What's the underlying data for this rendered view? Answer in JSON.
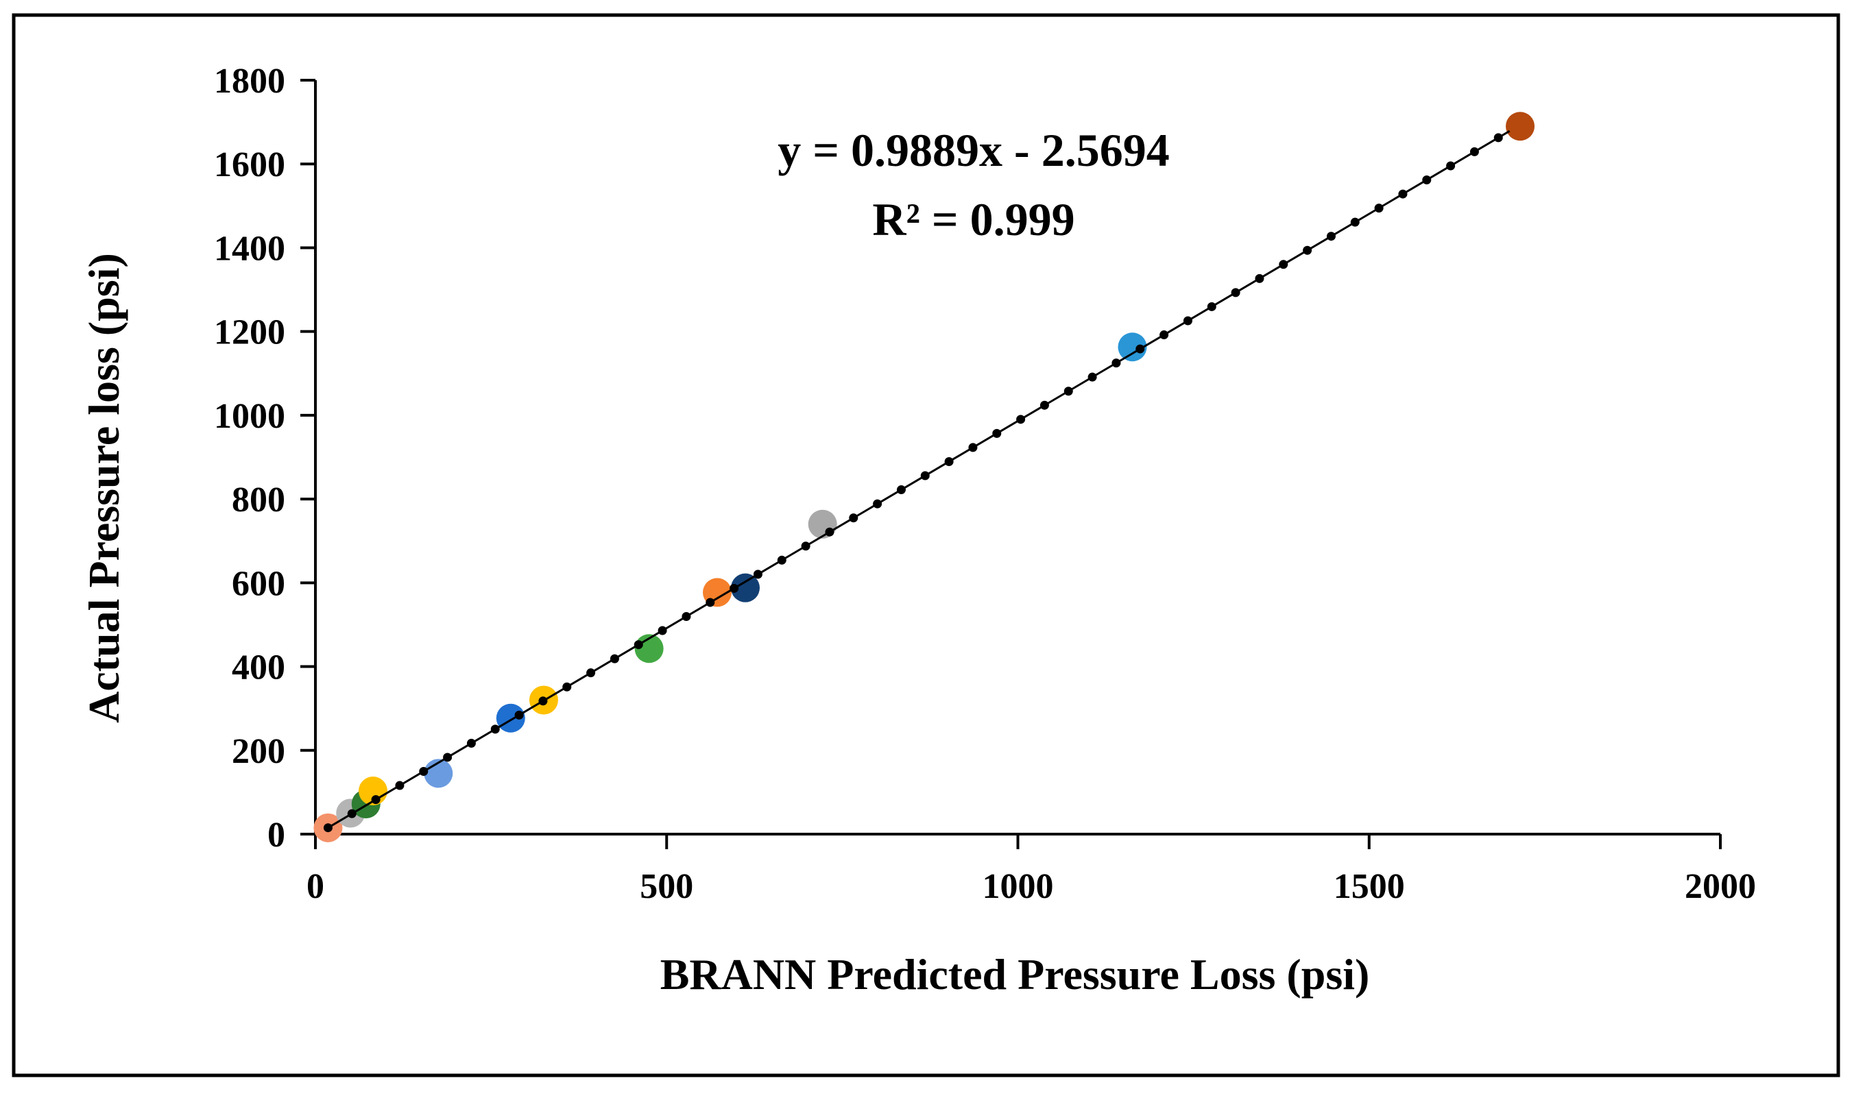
{
  "chart_data": {
    "type": "scatter",
    "title": "",
    "xlabel": "BRANN Predicted Pressure Loss (psi)",
    "ylabel": "Actual Pressure loss (psi)",
    "xlim": [
      0,
      2000
    ],
    "ylim": [
      0,
      1800
    ],
    "xticks": [
      0,
      500,
      1000,
      1500,
      2000
    ],
    "yticks": [
      0,
      200,
      400,
      600,
      800,
      1000,
      1200,
      1400,
      1600,
      1800
    ],
    "xtick_labels": [
      "0",
      "500",
      "1000",
      "1500",
      "2000"
    ],
    "ytick_labels": [
      "0",
      "200",
      "400",
      "600",
      "800",
      "1000",
      "1200",
      "1400",
      "1600",
      "1800"
    ],
    "grid": false,
    "legend": "none",
    "points": [
      {
        "x": 18,
        "y": 15,
        "color": "#f4926a"
      },
      {
        "x": 50,
        "y": 50,
        "color": "#b4b4b4"
      },
      {
        "x": 72,
        "y": 72,
        "color": "#2e7d32"
      },
      {
        "x": 82,
        "y": 103,
        "color": "#ffc000"
      },
      {
        "x": 175,
        "y": 145,
        "color": "#6a9be0"
      },
      {
        "x": 278,
        "y": 277,
        "color": "#1f6fd1"
      },
      {
        "x": 325,
        "y": 320,
        "color": "#ffc000"
      },
      {
        "x": 475,
        "y": 443,
        "color": "#43a843"
      },
      {
        "x": 572,
        "y": 577,
        "color": "#f57f2a"
      },
      {
        "x": 612,
        "y": 588,
        "color": "#123f73"
      },
      {
        "x": 722,
        "y": 740,
        "color": "#a8a8a8"
      },
      {
        "x": 1163,
        "y": 1163,
        "color": "#2a96d6"
      },
      {
        "x": 1715,
        "y": 1690,
        "color": "#b5490e"
      }
    ],
    "trendline": {
      "type": "linear",
      "slope": 0.9889,
      "intercept": -2.5694,
      "x_start": 18,
      "x_end": 1700,
      "marker_spacing": 34,
      "color": "#000000"
    },
    "annotations": {
      "equation": "y = 0.9889x - 2.5694",
      "r_squared": "R² = 0.999"
    }
  },
  "colors": {
    "frame": "#000000",
    "background": "#ffffff"
  }
}
